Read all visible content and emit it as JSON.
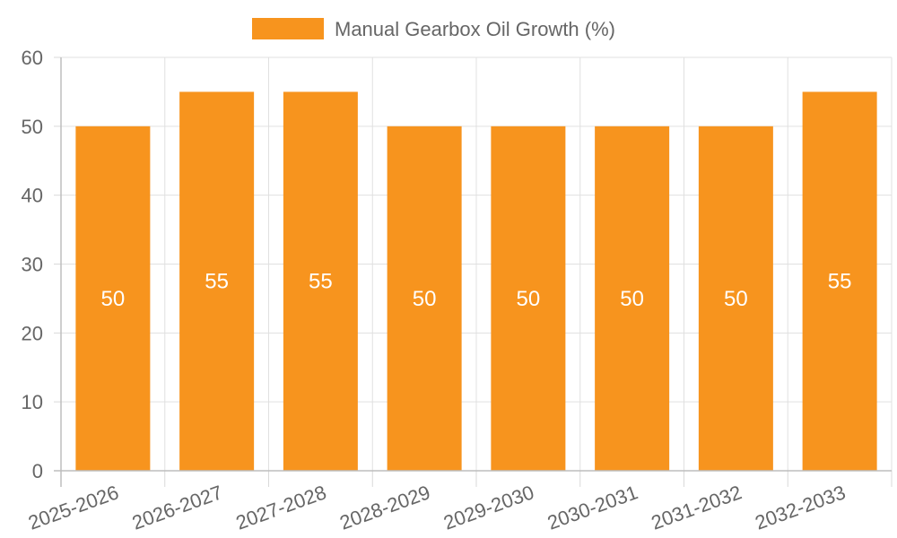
{
  "chart_data": {
    "type": "bar",
    "title": "",
    "xlabel": "",
    "ylabel": "",
    "categories": [
      "2025-2026",
      "2026-2027",
      "2027-2028",
      "2028-2029",
      "2029-2030",
      "2030-2031",
      "2031-2032",
      "2032-2033"
    ],
    "series": [
      {
        "name": "Manual Gearbox Oil Growth (%)",
        "values": [
          50,
          55,
          55,
          50,
          50,
          50,
          50,
          55
        ],
        "color": "#f7941e"
      }
    ],
    "ylim": [
      0,
      60
    ],
    "yticks": [
      0,
      10,
      20,
      30,
      40,
      50,
      60
    ],
    "grid": true,
    "legend": "top-center",
    "data_labels": true
  }
}
